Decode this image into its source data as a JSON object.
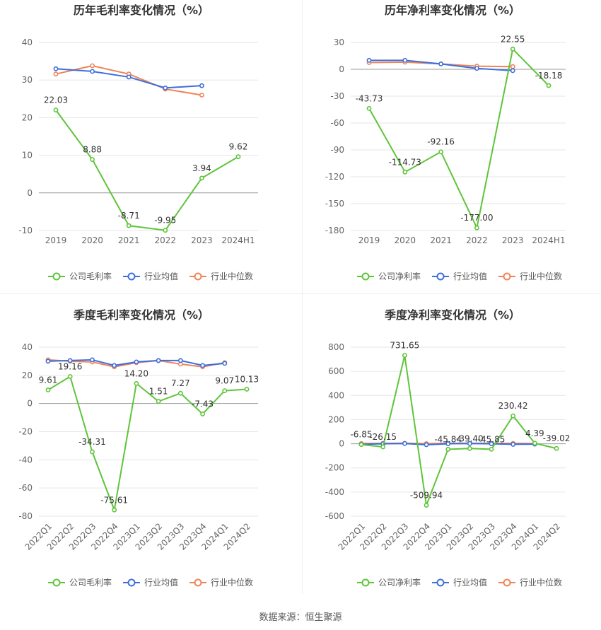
{
  "colors": {
    "company": "#5ec53a",
    "industry_avg": "#3d6fdb",
    "industry_median": "#ef8458",
    "axis_text": "#666666",
    "grid": "#e6e6e6",
    "title": "#333333"
  },
  "source_text": "数据来源：恒生聚源",
  "chart_data": [
    {
      "type": "line",
      "title": "历年毛利率变化情况（%）",
      "categories": [
        "2019",
        "2020",
        "2021",
        "2022",
        "2023",
        "2024H1"
      ],
      "ylim": [
        -10,
        40
      ],
      "yticks": [
        40,
        30,
        20,
        10,
        0,
        -10
      ],
      "rotate_x": false,
      "grid": true,
      "legend_position": "bottom",
      "series": [
        {
          "name": "公司毛利率",
          "role": "company",
          "values": [
            22.03,
            8.88,
            -8.71,
            -9.95,
            3.94,
            9.62
          ],
          "labels": [
            "22.03",
            "8.88",
            "-8.71",
            "-9.95",
            "3.94",
            "9.62"
          ]
        },
        {
          "name": "行业均值",
          "role": "avg",
          "values": [
            33.0,
            32.3,
            30.8,
            27.9,
            28.5,
            null
          ]
        },
        {
          "name": "行业中位数",
          "role": "median",
          "values": [
            31.6,
            33.8,
            31.6,
            27.6,
            26.0,
            null
          ]
        }
      ]
    },
    {
      "type": "line",
      "title": "历年净利率变化情况（%）",
      "categories": [
        "2019",
        "2020",
        "2021",
        "2022",
        "2023",
        "2024H1"
      ],
      "ylim": [
        -180,
        30
      ],
      "yticks": [
        30,
        0,
        -30,
        -60,
        -90,
        -120,
        -150,
        -180
      ],
      "rotate_x": false,
      "grid": true,
      "legend_position": "bottom",
      "series": [
        {
          "name": "公司净利率",
          "role": "company",
          "values": [
            -43.73,
            -114.73,
            -92.16,
            -177.0,
            22.55,
            -18.18
          ],
          "labels": [
            "-43.73",
            "-114.73",
            "-92.16",
            "-177.00",
            "22.55",
            "-18.18"
          ]
        },
        {
          "name": "行业均值",
          "role": "avg",
          "values": [
            10.0,
            10.0,
            6.0,
            1.0,
            -1.5,
            null
          ]
        },
        {
          "name": "行业中位数",
          "role": "median",
          "values": [
            7.5,
            8.0,
            6.0,
            3.5,
            3.0,
            null
          ]
        }
      ]
    },
    {
      "type": "line",
      "title": "季度毛利率变化情况（%）",
      "categories": [
        "2022Q1",
        "2022Q2",
        "2022Q3",
        "2022Q4",
        "2023Q1",
        "2023Q2",
        "2023Q3",
        "2023Q4",
        "2024Q1",
        "2024Q2"
      ],
      "ylim": [
        -80,
        40
      ],
      "yticks": [
        40,
        20,
        0,
        -20,
        -40,
        -60,
        -80
      ],
      "rotate_x": true,
      "grid": true,
      "legend_position": "bottom",
      "series": [
        {
          "name": "公司毛利率",
          "role": "company",
          "values": [
            9.61,
            19.16,
            -34.31,
            -75.61,
            14.2,
            1.51,
            7.27,
            -7.43,
            9.07,
            10.13
          ],
          "labels": [
            "9.61",
            "19.16",
            "-34.31",
            "-75.61",
            "14.20",
            "1.51",
            "7.27",
            "-7.43",
            "9.07",
            "10.13"
          ]
        },
        {
          "name": "行业均值",
          "role": "avg",
          "values": [
            30.0,
            30.5,
            31.0,
            27.0,
            29.5,
            30.5,
            30.5,
            27.0,
            28.5,
            null
          ]
        },
        {
          "name": "行业中位数",
          "role": "median",
          "values": [
            31.0,
            30.0,
            29.5,
            26.0,
            29.0,
            30.5,
            28.0,
            26.0,
            29.0,
            null
          ]
        }
      ]
    },
    {
      "type": "line",
      "title": "季度净利率变化情况（%）",
      "categories": [
        "2022Q1",
        "2022Q2",
        "2022Q3",
        "2022Q4",
        "2023Q1",
        "2023Q2",
        "2023Q3",
        "2023Q4",
        "2024Q1",
        "2024Q2"
      ],
      "ylim": [
        -600,
        800
      ],
      "yticks": [
        800,
        600,
        400,
        200,
        0,
        -200,
        -400,
        -600
      ],
      "rotate_x": true,
      "grid": true,
      "legend_position": "bottom",
      "series": [
        {
          "name": "公司净利率",
          "role": "company",
          "values": [
            -6.85,
            -26.15,
            731.65,
            -509.94,
            -45.84,
            -39.4,
            -45.85,
            230.42,
            4.39,
            -39.02
          ],
          "labels": [
            "-6.85",
            "-26.15",
            "731.65",
            "-509.94",
            "-45.84",
            "-39.40",
            "-45.85",
            "230.42",
            "4.39",
            "-39.02"
          ]
        },
        {
          "name": "行业均值",
          "role": "avg",
          "values": [
            -5,
            0,
            2,
            -8,
            0,
            2,
            0,
            -5,
            -3,
            null
          ]
        },
        {
          "name": "行业中位数",
          "role": "median",
          "values": [
            2,
            3,
            4,
            1,
            3,
            4,
            3,
            3,
            2,
            null
          ]
        }
      ]
    }
  ]
}
